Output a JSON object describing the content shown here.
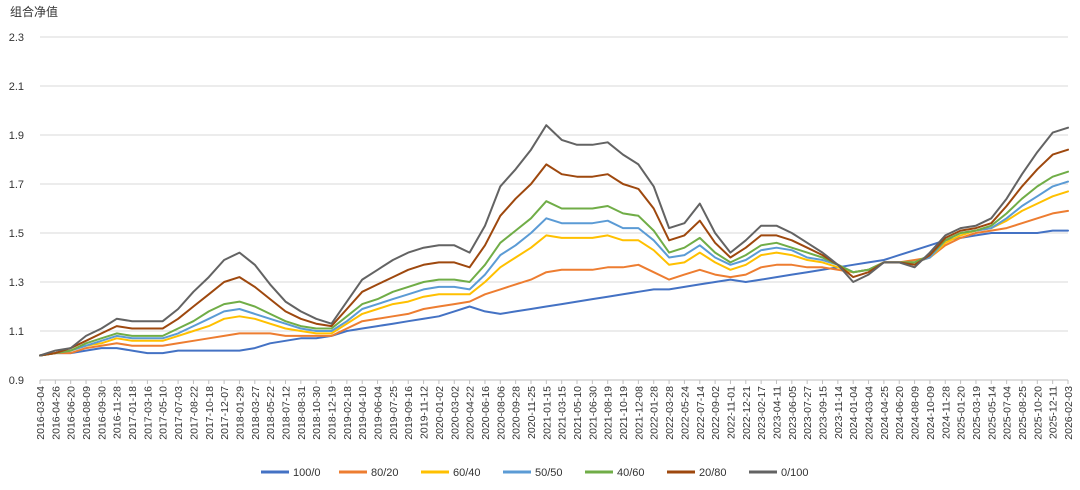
{
  "chart_data": {
    "type": "line",
    "ylabel": "组合净值",
    "ylim": [
      0.9,
      2.3
    ],
    "yticks": [
      "0.9",
      "1.1",
      "1.3",
      "1.5",
      "1.7",
      "1.9",
      "2.1",
      "2.3"
    ],
    "grid": "horizontal",
    "legend_position": "bottom",
    "categories": [
      "2016-03-04",
      "2016-04-26",
      "2016-06-20",
      "2016-08-09",
      "2016-09-30",
      "2016-11-28",
      "2017-01-18",
      "2017-03-16",
      "2017-05-10",
      "2017-07-03",
      "2017-08-22",
      "2017-10-18",
      "2017-12-07",
      "2018-01-29",
      "2018-03-27",
      "2018-05-22",
      "2018-07-12",
      "2018-08-31",
      "2018-10-30",
      "2018-12-19",
      "2019-02-18",
      "2019-04-10",
      "2019-06-04",
      "2019-07-25",
      "2019-09-16",
      "2019-11-12",
      "2020-01-02",
      "2020-03-02",
      "2020-04-22",
      "2020-06-16",
      "2020-08-06",
      "2020-09-28",
      "2020-11-25",
      "2021-01-15",
      "2021-03-15",
      "2021-05-10",
      "2021-06-30",
      "2021-08-19",
      "2021-10-19",
      "2021-12-08",
      "2022-01-28",
      "2022-03-28",
      "2022-05-24",
      "2022-07-14",
      "2022-09-02",
      "2022-11-01",
      "2022-12-21",
      "2023-02-17",
      "2023-04-11",
      "2023-06-05",
      "2023-07-27",
      "2023-09-15",
      "2023-11-14",
      "2024-01-04",
      "2024-03-04",
      "2024-04-25",
      "2024-06-20",
      "2024-08-09",
      "2024-10-09",
      "2024-11-28",
      "2025-01-20",
      "2025-03-19",
      "2025-05-14",
      "2025-07-04",
      "2025-08-25",
      "2025-10-20",
      "2025-12-11",
      "2026-02-03"
    ],
    "series": [
      {
        "name": "100/0",
        "color": "#4472c4",
        "values": [
          1.0,
          1.01,
          1.01,
          1.02,
          1.03,
          1.03,
          1.02,
          1.01,
          1.01,
          1.02,
          1.02,
          1.02,
          1.02,
          1.02,
          1.03,
          1.05,
          1.06,
          1.07,
          1.07,
          1.08,
          1.1,
          1.11,
          1.12,
          1.13,
          1.14,
          1.15,
          1.16,
          1.18,
          1.2,
          1.18,
          1.17,
          1.18,
          1.19,
          1.2,
          1.21,
          1.22,
          1.23,
          1.24,
          1.25,
          1.26,
          1.27,
          1.27,
          1.28,
          1.29,
          1.3,
          1.31,
          1.3,
          1.31,
          1.32,
          1.33,
          1.34,
          1.35,
          1.36,
          1.37,
          1.38,
          1.39,
          1.41,
          1.43,
          1.45,
          1.47,
          1.48,
          1.49,
          1.5,
          1.5,
          1.5,
          1.5,
          1.51,
          1.51
        ]
      },
      {
        "name": "80/20",
        "color": "#ed7d31",
        "values": [
          1.0,
          1.01,
          1.01,
          1.03,
          1.04,
          1.05,
          1.04,
          1.04,
          1.04,
          1.05,
          1.06,
          1.07,
          1.08,
          1.09,
          1.09,
          1.09,
          1.08,
          1.08,
          1.08,
          1.08,
          1.11,
          1.14,
          1.15,
          1.16,
          1.17,
          1.19,
          1.2,
          1.21,
          1.22,
          1.25,
          1.27,
          1.29,
          1.31,
          1.34,
          1.35,
          1.35,
          1.35,
          1.36,
          1.36,
          1.37,
          1.34,
          1.31,
          1.33,
          1.35,
          1.33,
          1.32,
          1.33,
          1.36,
          1.37,
          1.37,
          1.36,
          1.36,
          1.35,
          1.34,
          1.35,
          1.38,
          1.38,
          1.39,
          1.4,
          1.45,
          1.48,
          1.5,
          1.51,
          1.52,
          1.54,
          1.56,
          1.58,
          1.59
        ]
      },
      {
        "name": "60/40",
        "color": "#ffc000",
        "values": [
          1.0,
          1.01,
          1.02,
          1.04,
          1.05,
          1.07,
          1.06,
          1.06,
          1.06,
          1.08,
          1.1,
          1.12,
          1.15,
          1.16,
          1.15,
          1.13,
          1.11,
          1.1,
          1.09,
          1.09,
          1.13,
          1.17,
          1.19,
          1.21,
          1.22,
          1.24,
          1.25,
          1.25,
          1.25,
          1.3,
          1.36,
          1.4,
          1.44,
          1.49,
          1.48,
          1.48,
          1.48,
          1.49,
          1.47,
          1.47,
          1.43,
          1.37,
          1.38,
          1.42,
          1.38,
          1.35,
          1.37,
          1.41,
          1.42,
          1.41,
          1.39,
          1.38,
          1.36,
          1.34,
          1.35,
          1.38,
          1.38,
          1.38,
          1.4,
          1.46,
          1.49,
          1.51,
          1.52,
          1.55,
          1.59,
          1.62,
          1.65,
          1.67
        ]
      },
      {
        "name": "50/50",
        "color": "#5b9bd5",
        "values": [
          1.0,
          1.01,
          1.02,
          1.04,
          1.06,
          1.08,
          1.07,
          1.07,
          1.07,
          1.09,
          1.12,
          1.15,
          1.18,
          1.19,
          1.17,
          1.15,
          1.13,
          1.11,
          1.1,
          1.1,
          1.14,
          1.19,
          1.21,
          1.23,
          1.25,
          1.27,
          1.28,
          1.28,
          1.27,
          1.33,
          1.41,
          1.45,
          1.5,
          1.56,
          1.54,
          1.54,
          1.54,
          1.55,
          1.52,
          1.52,
          1.47,
          1.4,
          1.41,
          1.45,
          1.4,
          1.37,
          1.39,
          1.43,
          1.44,
          1.43,
          1.4,
          1.39,
          1.37,
          1.34,
          1.35,
          1.38,
          1.38,
          1.38,
          1.4,
          1.47,
          1.5,
          1.51,
          1.52,
          1.56,
          1.61,
          1.65,
          1.69,
          1.71
        ]
      },
      {
        "name": "40/60",
        "color": "#70ad47",
        "values": [
          1.0,
          1.01,
          1.02,
          1.05,
          1.07,
          1.09,
          1.08,
          1.08,
          1.08,
          1.11,
          1.14,
          1.18,
          1.21,
          1.22,
          1.2,
          1.17,
          1.14,
          1.12,
          1.11,
          1.11,
          1.16,
          1.21,
          1.23,
          1.26,
          1.28,
          1.3,
          1.31,
          1.31,
          1.3,
          1.37,
          1.46,
          1.51,
          1.56,
          1.63,
          1.6,
          1.6,
          1.6,
          1.61,
          1.58,
          1.57,
          1.51,
          1.42,
          1.44,
          1.48,
          1.42,
          1.38,
          1.41,
          1.45,
          1.46,
          1.44,
          1.42,
          1.4,
          1.37,
          1.34,
          1.35,
          1.38,
          1.38,
          1.38,
          1.41,
          1.47,
          1.5,
          1.51,
          1.53,
          1.58,
          1.64,
          1.69,
          1.73,
          1.75
        ]
      },
      {
        "name": "20/80",
        "color": "#9e480e",
        "values": [
          1.0,
          1.01,
          1.03,
          1.06,
          1.09,
          1.12,
          1.11,
          1.11,
          1.11,
          1.15,
          1.2,
          1.25,
          1.3,
          1.32,
          1.28,
          1.23,
          1.18,
          1.15,
          1.13,
          1.12,
          1.19,
          1.26,
          1.29,
          1.32,
          1.35,
          1.37,
          1.38,
          1.38,
          1.36,
          1.45,
          1.57,
          1.64,
          1.7,
          1.78,
          1.74,
          1.73,
          1.73,
          1.74,
          1.7,
          1.68,
          1.6,
          1.47,
          1.49,
          1.55,
          1.46,
          1.4,
          1.44,
          1.49,
          1.49,
          1.47,
          1.44,
          1.41,
          1.37,
          1.32,
          1.34,
          1.38,
          1.38,
          1.37,
          1.41,
          1.48,
          1.51,
          1.52,
          1.54,
          1.61,
          1.69,
          1.76,
          1.82,
          1.84
        ]
      },
      {
        "name": "0/100",
        "color": "#636363",
        "values": [
          1.0,
          1.02,
          1.03,
          1.08,
          1.11,
          1.15,
          1.14,
          1.14,
          1.14,
          1.19,
          1.26,
          1.32,
          1.39,
          1.42,
          1.37,
          1.29,
          1.22,
          1.18,
          1.15,
          1.13,
          1.22,
          1.31,
          1.35,
          1.39,
          1.42,
          1.44,
          1.45,
          1.45,
          1.42,
          1.53,
          1.69,
          1.76,
          1.84,
          1.94,
          1.88,
          1.86,
          1.86,
          1.87,
          1.82,
          1.78,
          1.69,
          1.52,
          1.54,
          1.62,
          1.5,
          1.42,
          1.47,
          1.53,
          1.53,
          1.5,
          1.46,
          1.42,
          1.37,
          1.3,
          1.33,
          1.38,
          1.38,
          1.36,
          1.42,
          1.49,
          1.52,
          1.53,
          1.56,
          1.64,
          1.74,
          1.83,
          1.91,
          1.93
        ]
      }
    ]
  }
}
